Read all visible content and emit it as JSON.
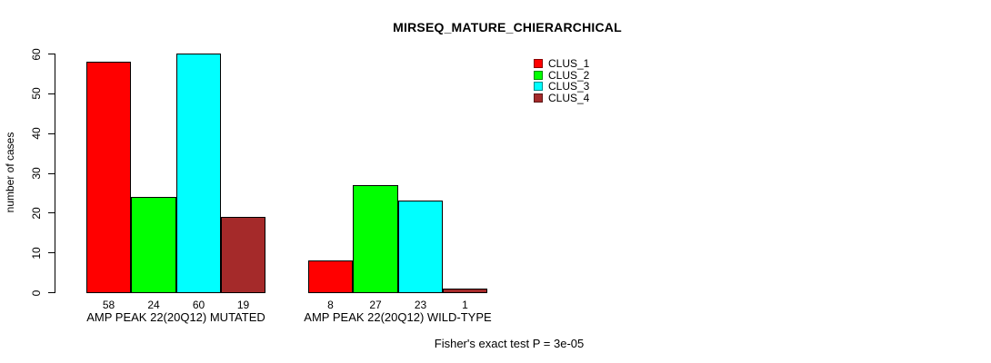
{
  "chart_data": {
    "type": "bar",
    "title": "MIRSEQ_MATURE_CHIERARCHICAL",
    "ylabel": "number of cases",
    "xlabel": "",
    "ylim": [
      0,
      60
    ],
    "yticks": [
      0,
      10,
      20,
      30,
      40,
      50,
      60
    ],
    "grid": false,
    "legend_position": "top-right",
    "categories": [
      "AMP PEAK 22(20Q12) MUTATED",
      "AMP PEAK 22(20Q12) WILD-TYPE"
    ],
    "series": [
      {
        "name": "CLUS_1",
        "color": "#FF0000",
        "values": [
          58,
          8
        ]
      },
      {
        "name": "CLUS_2",
        "color": "#00FF00",
        "values": [
          24,
          27
        ]
      },
      {
        "name": "CLUS_3",
        "color": "#00FFFF",
        "values": [
          60,
          23
        ]
      },
      {
        "name": "CLUS_4",
        "color": "#A52A2A",
        "values": [
          19,
          1
        ]
      }
    ],
    "bar_value_labels_shown": true,
    "annotation": "Fisher's exact test P = 3e-05"
  },
  "colors": {
    "background": "#FFFFFF",
    "axis": "#000000",
    "text": "#000000"
  }
}
